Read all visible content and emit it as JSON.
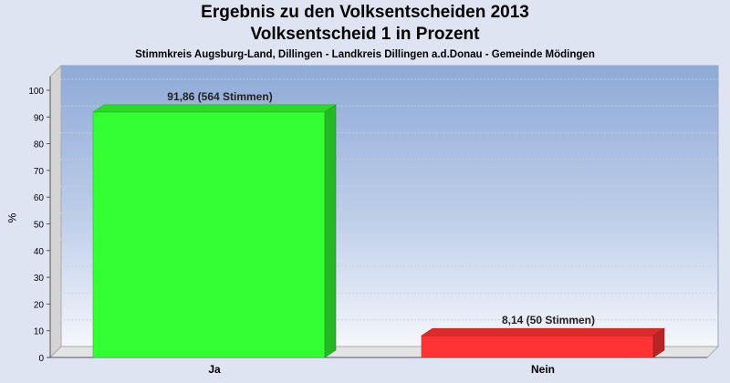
{
  "chart_data": {
    "type": "bar",
    "title": "Ergebnis zu den Volksentscheiden 2013",
    "title2": "Volksentscheid 1 in Prozent",
    "subtitle": "Stimmkreis Augsburg-Land, Dillingen - Landkreis Dillingen a.d.Donau - Gemeinde Mödingen",
    "xlabel": "",
    "ylabel": "%",
    "ylim": [
      0,
      100
    ],
    "yticks": [
      0,
      10,
      20,
      30,
      40,
      50,
      60,
      70,
      80,
      90,
      100
    ],
    "grid": true,
    "categories": [
      "Ja",
      "Nein"
    ],
    "values": [
      91.86,
      8.14
    ],
    "data_labels": [
      "91,86 (564 Stimmen)",
      "8,14 (50 Stimmen)"
    ],
    "colors": {
      "Ja": "#33ff33",
      "Nein": "#ff3333"
    }
  }
}
